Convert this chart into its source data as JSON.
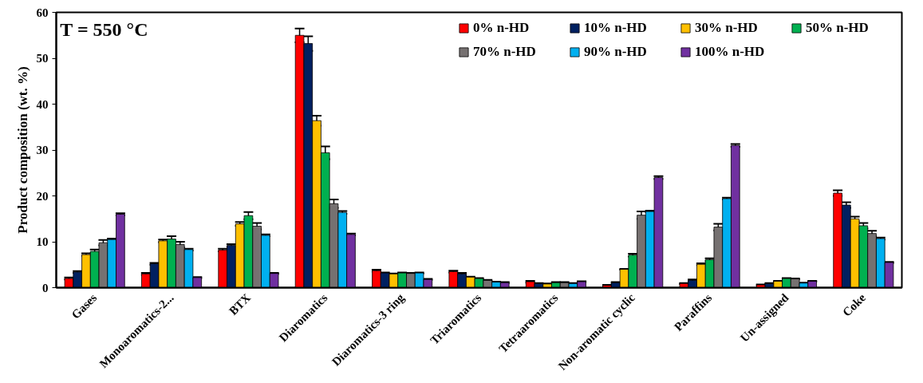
{
  "chart_data": {
    "type": "bar",
    "ylabel": "Product composition (wt. %)",
    "annotations": [
      "T = 550 °C"
    ],
    "categories": [
      "Gases",
      "Monoaromatics-2...",
      "BTX",
      "Diaromatics",
      "Diaromatics-3 ring",
      "Triaromatics",
      "Tetraaromatics",
      "Non-aromatic cyclic",
      "Paraffins",
      "Un-assigned",
      "Coke"
    ],
    "series": [
      {
        "name": "0% n-HD",
        "color": "#ff0000",
        "values": [
          2.0,
          3.0,
          8.2,
          55.0,
          3.7,
          3.5,
          1.3,
          0.5,
          0.9,
          0.6,
          20.6
        ],
        "errors": [
          0.2,
          0.2,
          0.3,
          1.5,
          0.2,
          0.2,
          0.2,
          0.1,
          0.1,
          0.1,
          0.6
        ]
      },
      {
        "name": "10% n-HD",
        "color": "#002060",
        "values": [
          3.4,
          5.2,
          9.2,
          53.2,
          3.2,
          3.0,
          0.9,
          1.1,
          1.6,
          0.9,
          18.0
        ],
        "errors": [
          0.2,
          0.2,
          0.3,
          1.6,
          0.1,
          0.2,
          0.1,
          0.1,
          0.2,
          0.1,
          0.6
        ]
      },
      {
        "name": "30% n-HD",
        "color": "#ffc000",
        "values": [
          7.2,
          10.2,
          13.9,
          36.4,
          3.0,
          2.3,
          0.8,
          4.0,
          5.1,
          1.4,
          15.0
        ],
        "errors": [
          0.3,
          0.3,
          0.4,
          1.1,
          0.1,
          0.1,
          0.1,
          0.1,
          0.2,
          0.1,
          0.5
        ]
      },
      {
        "name": "50% n-HD",
        "color": "#00b050",
        "values": [
          7.9,
          10.6,
          15.7,
          29.4,
          3.2,
          2.0,
          1.1,
          7.1,
          6.1,
          2.0,
          13.5
        ],
        "errors": [
          0.4,
          0.6,
          0.8,
          1.4,
          0.1,
          0.1,
          0.1,
          0.3,
          0.3,
          0.1,
          0.6
        ]
      },
      {
        "name": "70% n-HD",
        "color": "#767171",
        "values": [
          9.8,
          9.4,
          13.4,
          18.3,
          3.1,
          1.6,
          1.1,
          15.8,
          13.2,
          1.9,
          11.8
        ],
        "errors": [
          0.6,
          0.6,
          0.7,
          0.9,
          0.1,
          0.1,
          0.1,
          0.8,
          0.7,
          0.1,
          0.6
        ]
      },
      {
        "name": "90% n-HD",
        "color": "#00b0f0",
        "values": [
          10.5,
          8.3,
          11.4,
          16.4,
          3.2,
          1.2,
          0.9,
          16.6,
          19.4,
          1.0,
          10.7
        ],
        "errors": [
          0.2,
          0.2,
          0.2,
          0.3,
          0.1,
          0.1,
          0.1,
          0.2,
          0.2,
          0.1,
          0.2
        ]
      },
      {
        "name": "100% n-HD",
        "color": "#7030a0",
        "values": [
          16.0,
          2.2,
          3.1,
          11.6,
          1.8,
          1.1,
          1.3,
          24.0,
          31.0,
          1.4,
          5.5
        ],
        "errors": [
          0.2,
          0.1,
          0.1,
          0.2,
          0.1,
          0.1,
          0.1,
          0.3,
          0.3,
          0.1,
          0.1
        ]
      }
    ],
    "ylim": [
      0,
      60
    ],
    "yticks": [
      0,
      10,
      20,
      30,
      40,
      50,
      60
    ],
    "grid": false,
    "legend": "top right"
  }
}
